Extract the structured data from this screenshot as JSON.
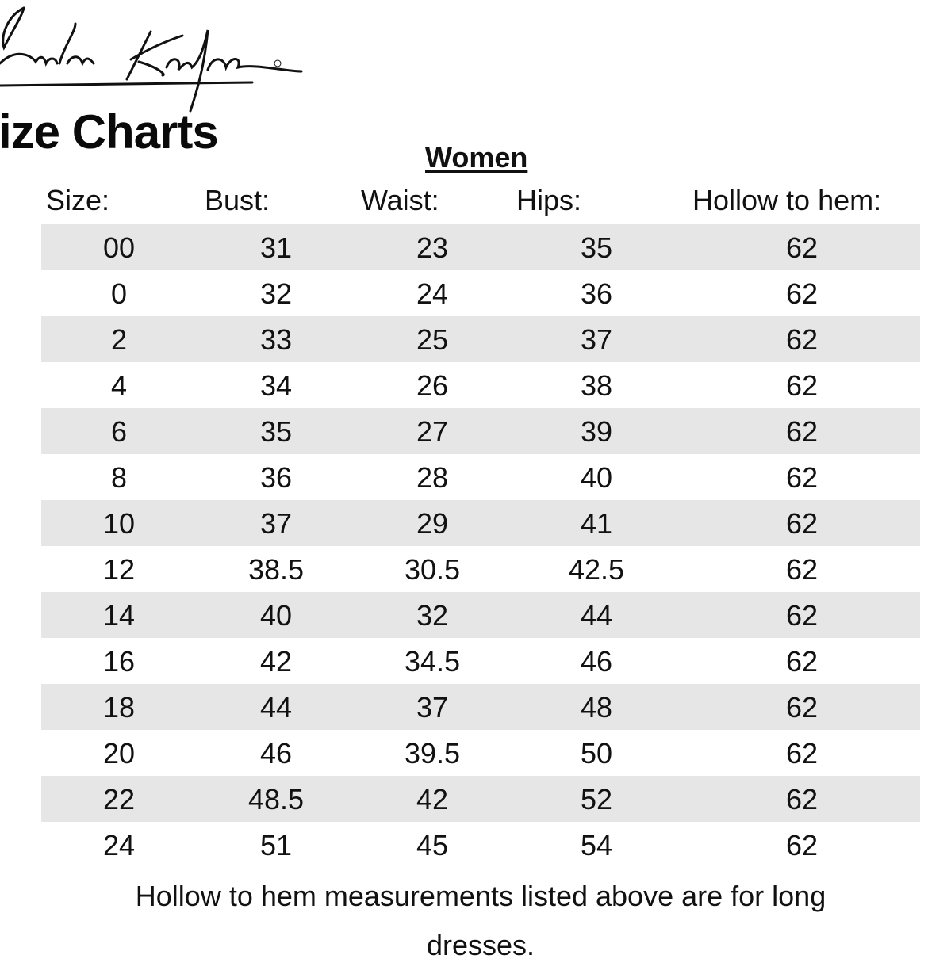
{
  "logo": {
    "text": "Jonathan Kayne®"
  },
  "title": "ize Charts",
  "section": "Women",
  "table": {
    "headers": [
      "Size:",
      "Bust:",
      "Waist:",
      "Hips:",
      "Hollow to hem:"
    ],
    "rows": [
      [
        "00",
        "31",
        "23",
        "35",
        "62"
      ],
      [
        "0",
        "32",
        "24",
        "36",
        "62"
      ],
      [
        "2",
        "33",
        "25",
        "37",
        "62"
      ],
      [
        "4",
        "34",
        "26",
        "38",
        "62"
      ],
      [
        "6",
        "35",
        "27",
        "39",
        "62"
      ],
      [
        "8",
        "36",
        "28",
        "40",
        "62"
      ],
      [
        "10",
        "37",
        "29",
        "41",
        "62"
      ],
      [
        "12",
        "38.5",
        "30.5",
        "42.5",
        "62"
      ],
      [
        "14",
        "40",
        "32",
        "44",
        "62"
      ],
      [
        "16",
        "42",
        "34.5",
        "46",
        "62"
      ],
      [
        "18",
        "44",
        "37",
        "48",
        "62"
      ],
      [
        "20",
        "46",
        "39.5",
        "50",
        "62"
      ],
      [
        "22",
        "48.5",
        "42",
        "52",
        "62"
      ],
      [
        "24",
        "51",
        "45",
        "54",
        "62"
      ]
    ]
  },
  "note": {
    "line1": "Hollow to hem measurements listed above are for long",
    "line2": "dresses."
  },
  "colors": {
    "stripe": "#e6e6e6",
    "text": "#111111"
  }
}
